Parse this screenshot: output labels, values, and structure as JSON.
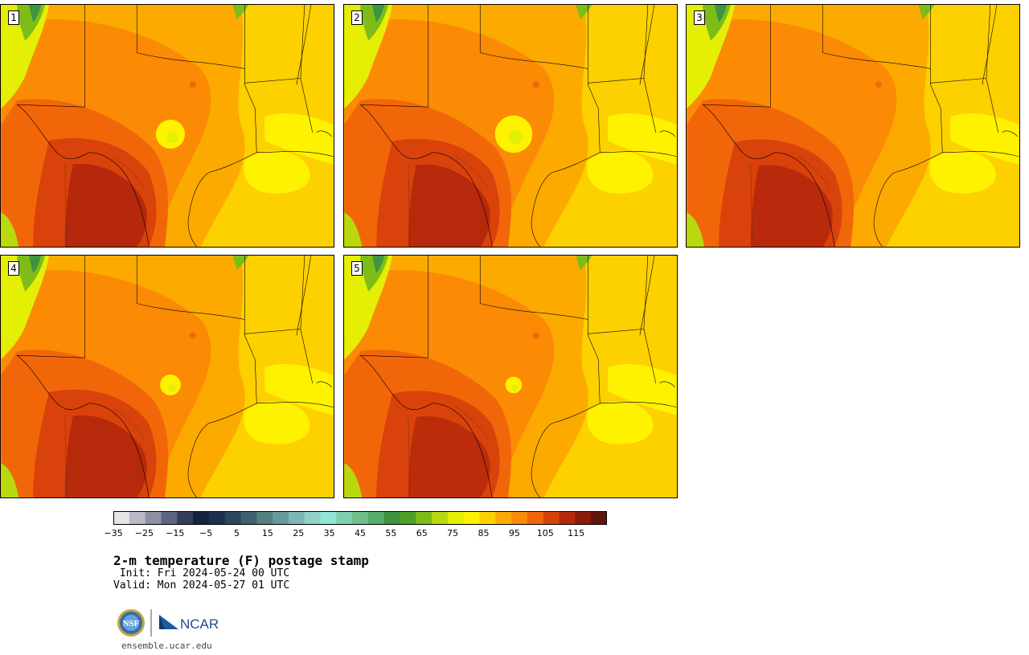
{
  "panels": [
    {
      "label": "1",
      "hot_core": 1.0,
      "cool_spot": 0.7
    },
    {
      "label": "2",
      "hot_core": 0.95,
      "cool_spot": 0.9
    },
    {
      "label": "3",
      "hot_core": 0.9,
      "cool_spot": 0.0
    },
    {
      "label": "4",
      "hot_core": 0.95,
      "cool_spot": 0.5
    },
    {
      "label": "5",
      "hot_core": 0.85,
      "cool_spot": 0.4
    }
  ],
  "colorbar": {
    "min": -35,
    "max": 120,
    "step": 5,
    "tick_labels": [
      "−35",
      "−25",
      "−15",
      "−5",
      "5",
      "15",
      "25",
      "35",
      "45",
      "55",
      "65",
      "75",
      "85",
      "95",
      "105",
      "115"
    ],
    "tick_values": [
      -35,
      -25,
      -15,
      -5,
      5,
      15,
      25,
      35,
      45,
      55,
      65,
      75,
      85,
      95,
      105,
      115
    ],
    "colors": [
      "#e6e6e8",
      "#b9b9c7",
      "#8e90a6",
      "#5e6581",
      "#333d5c",
      "#16223f",
      "#1d304e",
      "#2b475f",
      "#3f6170",
      "#548180",
      "#69999a",
      "#7db7b3",
      "#8ed2c8",
      "#93e6d6",
      "#7fd1ad",
      "#6fbf8b",
      "#58ac6b",
      "#3f9441",
      "#4fa124",
      "#7ebd18",
      "#b9d80e",
      "#e4ef05",
      "#fff200",
      "#fdd000",
      "#fdaa00",
      "#fb8a05",
      "#f2660a",
      "#d9420b",
      "#b5280c",
      "#8d1b0b",
      "#621509"
    ]
  },
  "title": "2-m temperature (F) postage stamp",
  "init": " Init: Fri 2024-05-24 00 UTC",
  "valid": "Valid: Mon 2024-05-27 01 UTC",
  "logos": {
    "nsf": "NSF",
    "ncar": "NCAR"
  },
  "website": "ensemble.ucar.edu"
}
